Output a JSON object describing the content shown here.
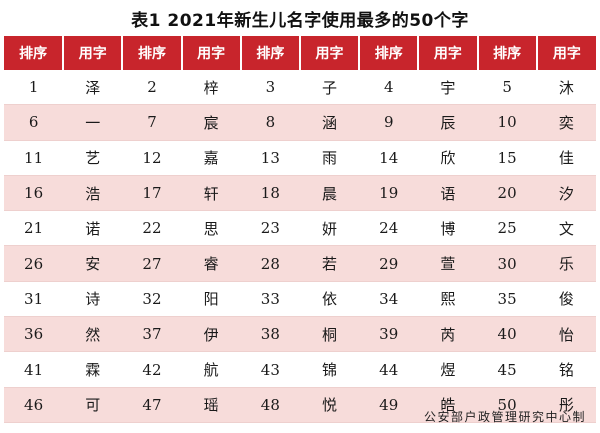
{
  "title": "表1  2021年新生儿名字使用最多的50个字",
  "headers": [
    "排序",
    "用字",
    "排序",
    "用字",
    "排序",
    "用字",
    "排序",
    "用字",
    "排序",
    "用字"
  ],
  "rows": [
    [
      "1",
      "泽",
      "2",
      "梓",
      "3",
      "子",
      "4",
      "宇",
      "5",
      "沐"
    ],
    [
      "6",
      "一",
      "7",
      "宸",
      "8",
      "涵",
      "9",
      "辰",
      "10",
      "奕"
    ],
    [
      "11",
      "艺",
      "12",
      "嘉",
      "13",
      "雨",
      "14",
      "欣",
      "15",
      "佳"
    ],
    [
      "16",
      "浩",
      "17",
      "轩",
      "18",
      "晨",
      "19",
      "语",
      "20",
      "汐"
    ],
    [
      "21",
      "诺",
      "22",
      "思",
      "23",
      "妍",
      "24",
      "博",
      "25",
      "文"
    ],
    [
      "26",
      "安",
      "27",
      "睿",
      "28",
      "若",
      "29",
      "萱",
      "30",
      "乐"
    ],
    [
      "31",
      "诗",
      "32",
      "阳",
      "33",
      "依",
      "34",
      "熙",
      "35",
      "俊"
    ],
    [
      "36",
      "然",
      "37",
      "伊",
      "38",
      "桐",
      "39",
      "芮",
      "40",
      "怡"
    ],
    [
      "41",
      "霖",
      "42",
      "航",
      "43",
      "锦",
      "44",
      "煜",
      "45",
      "铭"
    ],
    [
      "46",
      "可",
      "47",
      "瑶",
      "48",
      "悦",
      "49",
      "皓",
      "50",
      "彤"
    ]
  ],
  "source": "公安部户政管理研究中心制",
  "colors": {
    "header_bg": "#c8252c",
    "stripe_bg": "#f7dcda"
  }
}
